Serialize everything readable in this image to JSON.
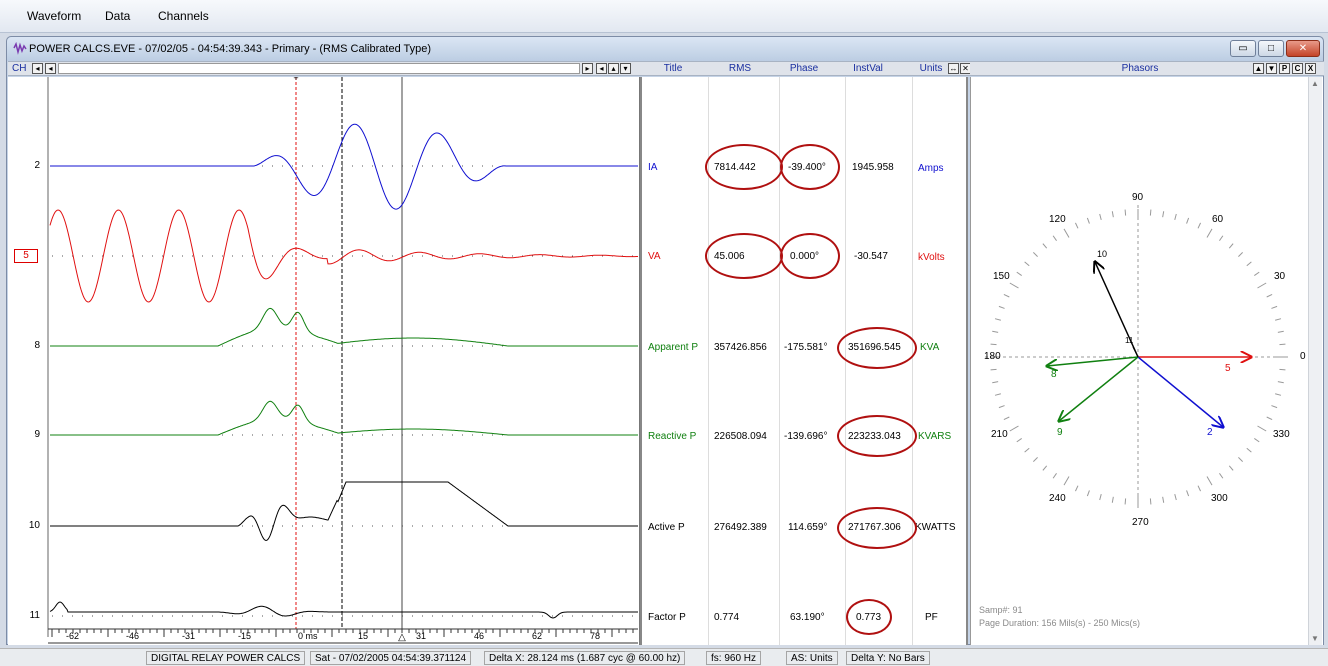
{
  "menu": [
    "Waveform",
    "Data",
    "Channels"
  ],
  "window": {
    "title": "POWER CALCS.EVE - 07/02/05 - 04:54:39.343 - Primary - (RMS Calibrated Type)",
    "ch_label": "CH"
  },
  "columns": {
    "title": "Title",
    "rms": "RMS",
    "phase": "Phase",
    "instval": "InstVal",
    "units": "Units",
    "phasors": "Phasors"
  },
  "phasor_buttons": [
    "▲",
    "▼",
    "P",
    "C",
    "X"
  ],
  "channels": [
    {
      "num": "2",
      "title": "IA",
      "rms": "7814.442",
      "phase": "-39.400°",
      "instval": "1945.958",
      "units": "Amps",
      "color": "#1010d0",
      "selected": false
    },
    {
      "num": "5",
      "title": "VA",
      "rms": "45.006",
      "phase": "0.000°",
      "instval": "-30.547",
      "units": "kVolts",
      "color": "#e01010",
      "selected": true
    },
    {
      "num": "8",
      "title": "Apparent P",
      "rms": "357426.856",
      "phase": "-175.581°",
      "instval": "351696.545",
      "units": "KVA",
      "color": "#108010",
      "selected": false
    },
    {
      "num": "9",
      "title": "Reactive P",
      "rms": "226508.094",
      "phase": "-139.696°",
      "instval": "223233.043",
      "units": "KVARS",
      "color": "#108010",
      "selected": false
    },
    {
      "num": "10",
      "title": "Active P",
      "rms": "276492.389",
      "phase": "114.659°",
      "instval": "271767.306",
      "units": "KWATTS",
      "color": "#000000",
      "selected": false
    },
    {
      "num": "11",
      "title": "Factor P",
      "rms": "0.774",
      "phase": "63.190°",
      "instval": "0.773",
      "units": "PF",
      "color": "#000000",
      "selected": false
    }
  ],
  "time_axis": [
    "-62",
    "-46",
    "-31",
    "-15",
    "0 ms",
    "15",
    "31",
    "46",
    "62",
    "78"
  ],
  "phasor_angles": [
    "0",
    "30",
    "60",
    "90",
    "120",
    "150",
    "180",
    "210",
    "240",
    "270",
    "300",
    "330"
  ],
  "phasor_labels": {
    "p5": "5",
    "p2": "2",
    "p8": "8",
    "p9": "9",
    "p10": "10",
    "p11": "11"
  },
  "phasor_info": {
    "samp": "Samp#: 91",
    "duration": "Page Duration: 156 Mils(s) - 250 Mics(s)"
  },
  "status": {
    "app": "DIGITAL RELAY POWER CALCS",
    "datetime": "Sat - 07/02/2005 04:54:39.371124",
    "delta_x": "Delta X: 28.124 ms  (1.687 cyc @ 60.00 hz)",
    "fs": "fs:  960 Hz",
    "as_units": "AS: Units",
    "delta_y": "Delta Y:  No Bars"
  },
  "colors": {
    "ia": "#1010d0",
    "va": "#e01010",
    "green": "#108010",
    "black": "#000000",
    "oval": "#b01010"
  }
}
